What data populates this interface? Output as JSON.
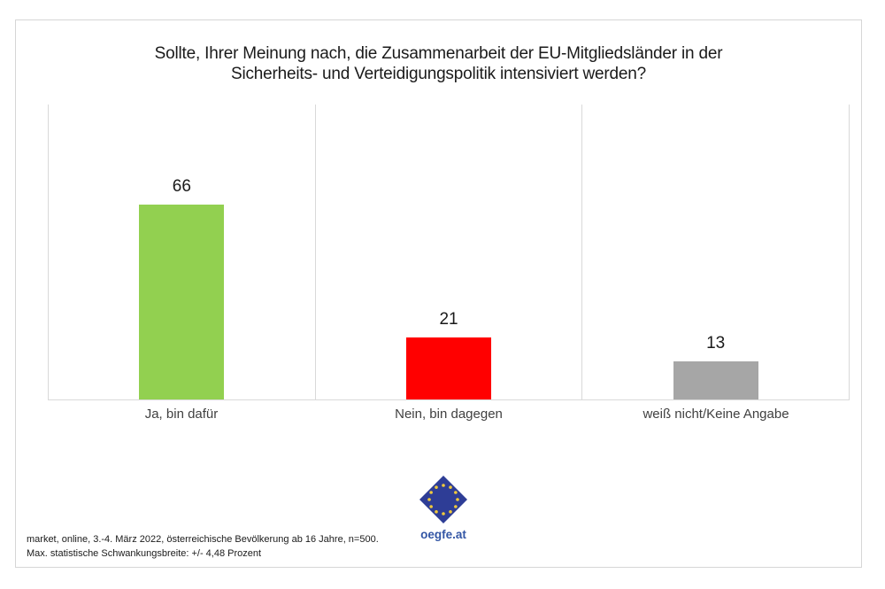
{
  "title": {
    "line1": "Sollte, Ihrer Meinung nach, die Zusammenarbeit der EU-Mitgliedsländer in der",
    "line2": "Sicherheits- und Verteidigungspolitik intensiviert werden?"
  },
  "chart_data": {
    "type": "bar",
    "title": "Sollte, Ihrer Meinung nach, die Zusammenarbeit der EU-Mitgliedsländer in der Sicherheits- und Verteidigungspolitik intensiviert werden?",
    "categories": [
      "Ja, bin dafür",
      "Nein, bin dagegen",
      "weiß nicht/Keine Angabe"
    ],
    "values": [
      66,
      21,
      13
    ],
    "bar_colors": [
      "#92d050",
      "#ff0000",
      "#a6a6a6"
    ],
    "ylim": [
      0,
      100
    ],
    "data_labels": true,
    "legend": "none",
    "grid": "vertical category dividers only, light gray",
    "xlabel": "",
    "ylabel": ""
  },
  "logo": {
    "text": "oegfe.at"
  },
  "footer": {
    "line1": "market, online, 3.-4. März 2022, österreichische Bevölkerung ab 16 Jahre, n=500.",
    "line2": "Max. statistische Schwankungsbreite: +/- 4,48 Prozent"
  },
  "colors": {
    "bar_yes": "#92d050",
    "bar_no": "#ff0000",
    "bar_unknown": "#a6a6a6",
    "gridline": "#d9d9d9",
    "figure_border": "#d6d6d6",
    "logo_blue": "#2e3d96",
    "star_yellow": "#f0c93c",
    "logo_text_blue": "#3356a5",
    "text_dark": "#1a1a1a"
  }
}
